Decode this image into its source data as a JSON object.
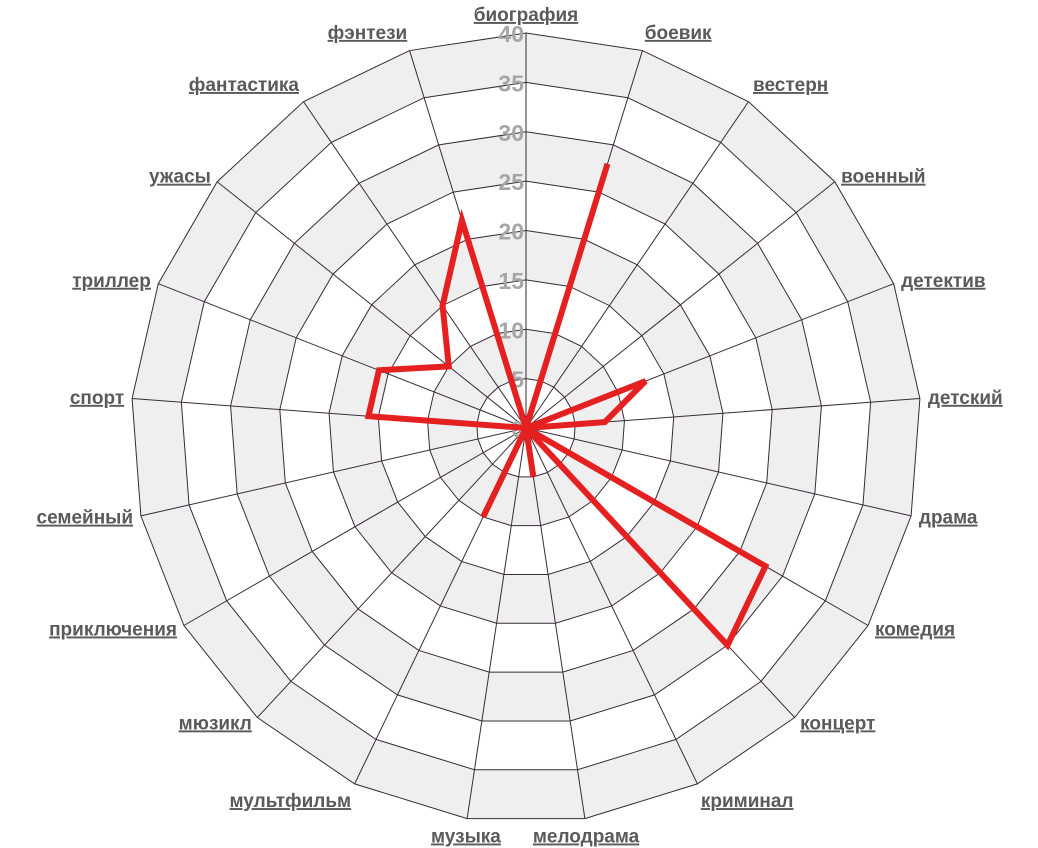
{
  "chart_data": {
    "type": "radar",
    "title": "",
    "categories": [
      "биография",
      "боевик",
      "вестерн",
      "военный",
      "детектив",
      "детский",
      "драма",
      "комедия",
      "концерт",
      "криминал",
      "мелодрама",
      "музыка",
      "мультфильм",
      "мюзикл",
      "приключения",
      "семейный",
      "спорт",
      "триллер",
      "ужасы",
      "фантастика",
      "фэнтези"
    ],
    "series": [
      {
        "values": [
          0,
          28,
          0,
          0,
          13,
          8,
          0,
          28,
          30,
          0,
          5,
          0,
          10,
          0,
          0,
          0,
          16,
          16,
          10,
          15,
          22
        ]
      }
    ],
    "rlim": [
      0,
      40
    ],
    "ticks": [
      "0",
      "5",
      "10",
      "15",
      "20",
      "25",
      "30",
      "35",
      "40"
    ],
    "grid": true,
    "colors": {
      "series": "#e52020",
      "grid_line": "#3a2a3a",
      "band_alt": "#efeff0",
      "band": "#ffffff",
      "tick_text": "#a6a6a6",
      "label_text": "#5a5a5a"
    }
  }
}
